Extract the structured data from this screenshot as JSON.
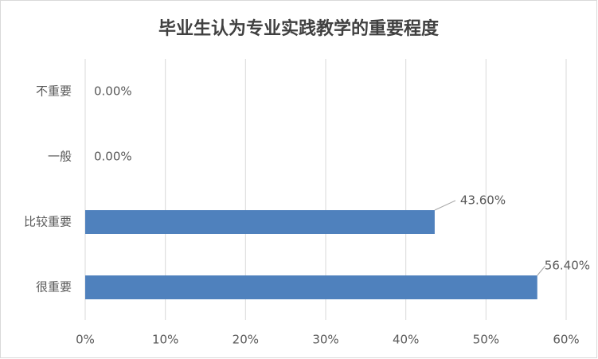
{
  "chart_data": {
    "type": "bar",
    "orientation": "horizontal",
    "title": "毕业生认为专业实践教学的重要程度",
    "categories": [
      "不重要",
      "一般",
      "比较重要",
      "很重要"
    ],
    "values": [
      0,
      0,
      43.6,
      56.4
    ],
    "value_labels": [
      "0.00%",
      "0.00%",
      "43.60%",
      "56.40%"
    ],
    "color": "#4f81bd",
    "xlim": [
      0,
      60
    ],
    "xticks": [
      {
        "value": 0,
        "label": "0%"
      },
      {
        "value": 10,
        "label": "10%"
      },
      {
        "value": 20,
        "label": "20%"
      },
      {
        "value": 30,
        "label": "30%"
      },
      {
        "value": 40,
        "label": "40%"
      },
      {
        "value": 50,
        "label": "50%"
      },
      {
        "value": 60,
        "label": "60%"
      }
    ],
    "grid": true
  }
}
